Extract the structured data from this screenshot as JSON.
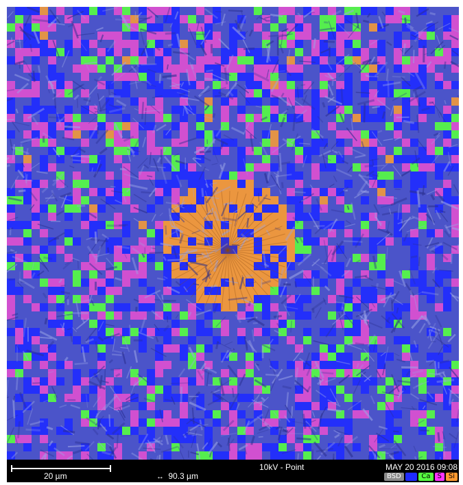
{
  "image": {
    "colors": {
      "background_blue": "#4b54c9",
      "tile_blue": "#1f2bff",
      "tile_pink": "#e050d0",
      "tile_green": "#56ff40",
      "tile_orange": "#f39a38",
      "crystal_light": "#9aa4e6",
      "crystal_dark": "#2a2f8f"
    }
  },
  "info_bar": {
    "scale_label": "20 µm",
    "hfw_icon": "↔",
    "hfw_text": "90.3 µm",
    "voltage_mode": "10kV - Point",
    "datetime": "MAY 20 2016 09:08",
    "legend": [
      {
        "label": "BSD",
        "bg": "#8a8a8a",
        "fg": "#ffffff"
      },
      {
        "label": "Al",
        "bg": "#1f2bff",
        "fg": "#1f2bff"
      },
      {
        "label": "Ca",
        "bg": "#56ff40",
        "fg": "#000000"
      },
      {
        "label": "S",
        "bg": "#ff33ff",
        "fg": "#000000"
      },
      {
        "label": "Si",
        "bg": "#ff9a30",
        "fg": "#000000"
      }
    ]
  }
}
